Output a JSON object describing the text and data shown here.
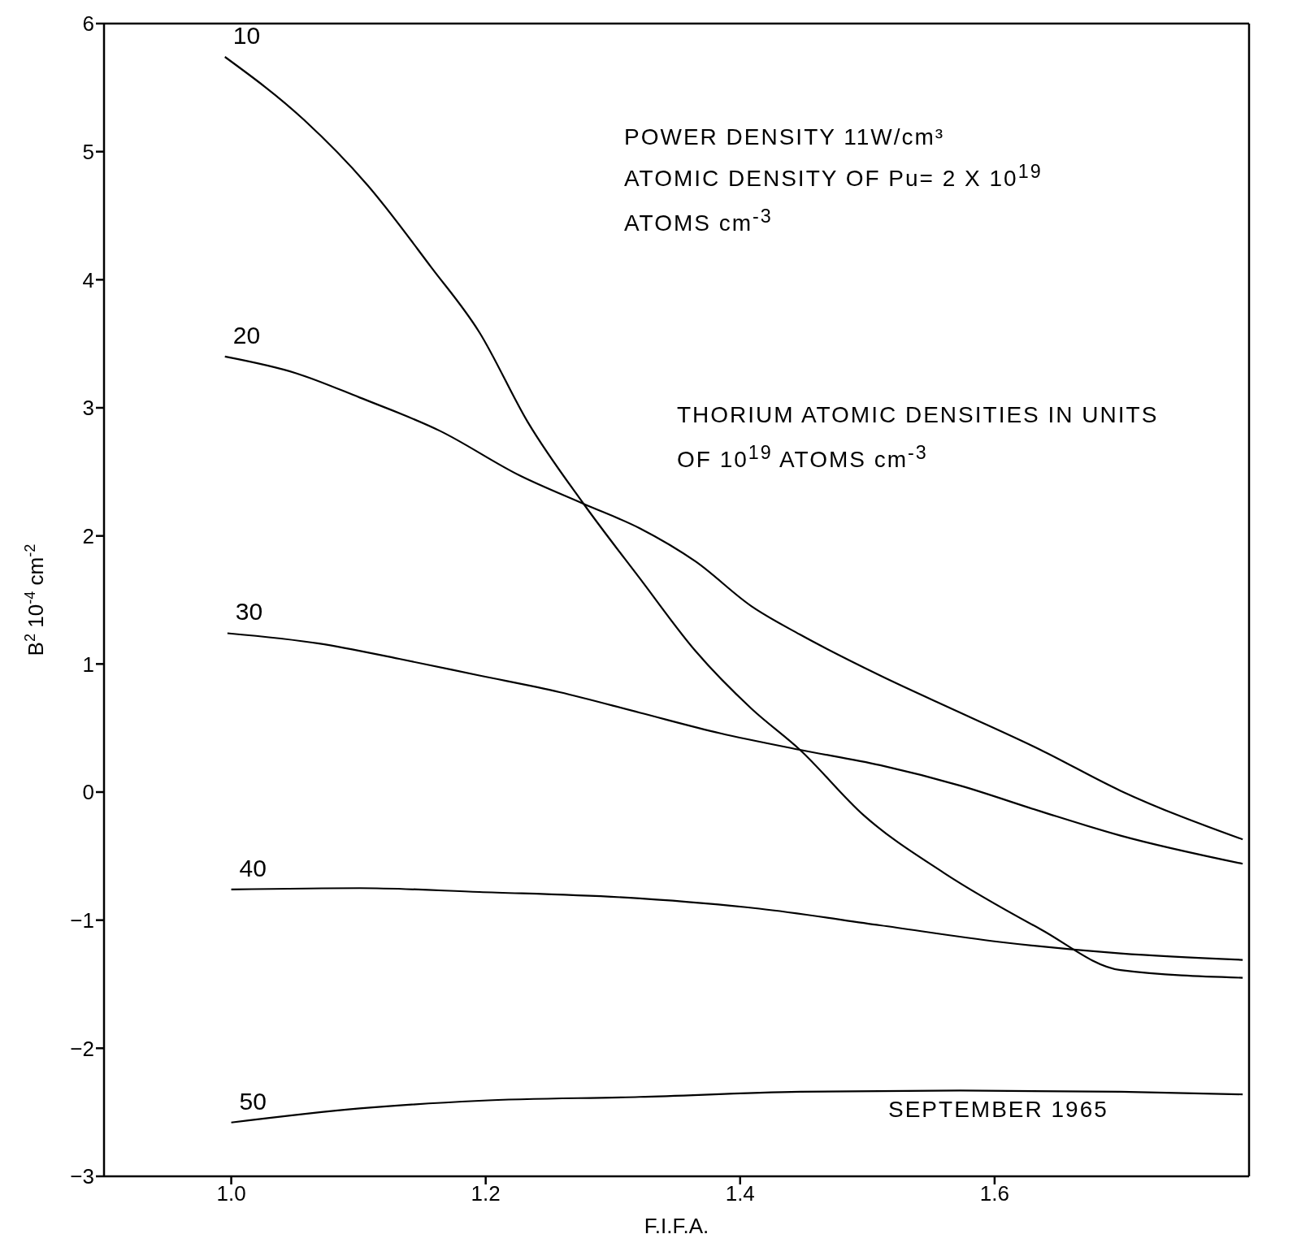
{
  "chart_data": {
    "type": "line",
    "xlabel": "F.I.F.A.",
    "ylabel": "B$^{2}$ 10$^{-4}$ cm$^{-2}$",
    "xlim": [
      0.9,
      1.8
    ],
    "xticks": [
      {
        "value": 1.0,
        "label": "1.0"
      },
      1.2,
      1.4,
      1.6
    ],
    "ylim": [
      -3,
      6
    ],
    "yticks": [
      {
        "value": -3,
        "label": "−3"
      },
      {
        "value": -2,
        "label": "−2"
      },
      {
        "value": -1,
        "label": "−1"
      },
      0,
      1,
      2,
      3,
      4,
      5,
      6
    ],
    "grid": false,
    "legend": false,
    "marker": "none",
    "line_style": "solid",
    "series": [
      {
        "name": "10",
        "color": "#000000",
        "x": [
          0.995,
          1.057,
          1.107,
          1.157,
          1.195,
          1.233,
          1.277,
          1.321,
          1.365,
          1.409,
          1.447,
          1.497,
          1.56,
          1.636,
          1.699,
          1.795
        ],
        "values": [
          5.74,
          5.25,
          4.74,
          4.1,
          3.59,
          2.89,
          2.25,
          1.67,
          1.1,
          0.65,
          0.33,
          -0.18,
          -0.63,
          -1.07,
          -1.39,
          -1.45
        ]
      },
      {
        "name": "20",
        "color": "#000000",
        "x": [
          0.995,
          1.051,
          1.101,
          1.164,
          1.227,
          1.277,
          1.321,
          1.365,
          1.409,
          1.447,
          1.51,
          1.573,
          1.636,
          1.699,
          1.795
        ],
        "values": [
          3.4,
          3.27,
          3.08,
          2.82,
          2.47,
          2.25,
          2.06,
          1.8,
          1.45,
          1.23,
          0.91,
          0.62,
          0.33,
          0.01,
          -0.37
        ]
      },
      {
        "name": "30",
        "color": "#000000",
        "x": [
          0.997,
          1.069,
          1.132,
          1.195,
          1.258,
          1.321,
          1.384,
          1.447,
          1.51,
          1.573,
          1.636,
          1.699,
          1.795
        ],
        "values": [
          1.24,
          1.16,
          1.04,
          0.91,
          0.78,
          0.62,
          0.46,
          0.33,
          0.21,
          0.05,
          -0.15,
          -0.34,
          -0.56
        ]
      },
      {
        "name": "40",
        "color": "#000000",
        "x": [
          1.0,
          1.101,
          1.195,
          1.321,
          1.415,
          1.51,
          1.604,
          1.699,
          1.795
        ],
        "values": [
          -0.76,
          -0.75,
          -0.78,
          -0.83,
          -0.91,
          -1.04,
          -1.17,
          -1.26,
          -1.31
        ]
      },
      {
        "name": "50",
        "color": "#000000",
        "x": [
          1.0,
          1.101,
          1.195,
          1.321,
          1.447,
          1.573,
          1.699,
          1.795
        ],
        "values": [
          -2.58,
          -2.47,
          -2.41,
          -2.38,
          -2.34,
          -2.33,
          -2.34,
          -2.36
        ]
      }
    ],
    "annotations": [
      "POWER DENSITY 11W/cm³",
      "ATOMIC DENSITY OF Pu= 2 X 10$^{19}$ ATOMS cm$^{-3}$",
      "THORIUM ATOMIC DENSITIES IN UNITS OF 10$^{19}$ ATOMS cm$^{-3}$",
      "SEPTEMBER 1965"
    ]
  }
}
